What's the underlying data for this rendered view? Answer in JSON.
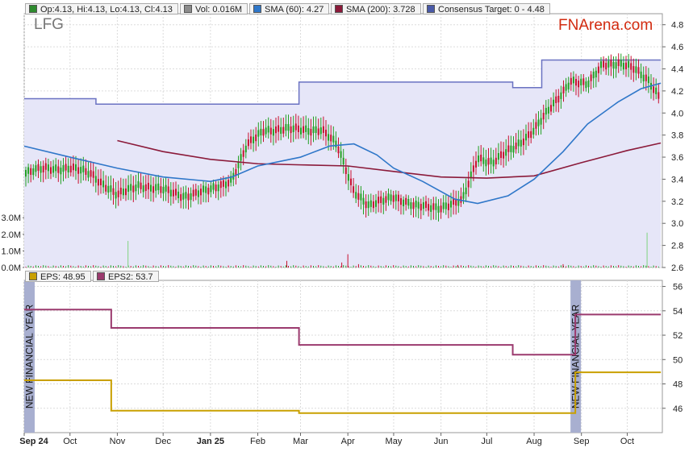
{
  "header": {
    "ticker": "LFG",
    "brand": "FNArena.com",
    "legend": [
      {
        "text": "Op:4.13, Hi:4.13, Lo:4.13, Cl:4.13",
        "color": "#2e8b2e"
      },
      {
        "text": "Vol: 0.016M",
        "color": "#8c8c8c"
      },
      {
        "text": "SMA (60): 4.27",
        "color": "#2f77c9"
      },
      {
        "text": "SMA (200): 3.728",
        "color": "#8b1a3a"
      },
      {
        "text": "Consensus Target: 0 - 4.48",
        "color": "#4a5aa8"
      }
    ]
  },
  "lower_legend": [
    {
      "text": "EPS: 48.95",
      "color": "#c9a000"
    },
    {
      "text": "EPS2: 53.7",
      "color": "#9b3a6e"
    }
  ],
  "annotations": {
    "fy_label": "NEW FINANCIAL YEAR"
  },
  "colors": {
    "up": "#22a022",
    "down": "#c8102e",
    "sma60": "#2f77c9",
    "sma200": "#8b1a3a",
    "target": "#6a72c2",
    "target_fill": "#e6e6f8",
    "eps": "#c9a000",
    "eps2": "#9b3a6e",
    "fy_band": "#a8afd0"
  },
  "chart_data": [
    {
      "type": "candlestick",
      "title": "LFG",
      "y_axis_ticks": [
        2.6,
        2.8,
        3.0,
        3.2,
        3.4,
        3.6,
        3.8,
        4.0,
        4.2,
        4.4,
        4.6,
        4.8
      ],
      "ylim": [
        2.6,
        4.9
      ],
      "x_axis_ticks": [
        "Sep 24",
        "Oct",
        "Nov",
        "Dec",
        "Jan 25",
        "Feb",
        "Mar",
        "Apr",
        "May",
        "Jun",
        "Jul",
        "Aug",
        "Sep",
        "Oct"
      ],
      "price_path": [
        [
          "2024-09-01",
          3.45
        ],
        [
          "2024-09-15",
          3.5
        ],
        [
          "2024-10-01",
          3.5
        ],
        [
          "2024-10-15",
          3.45
        ],
        [
          "2024-11-01",
          3.25
        ],
        [
          "2024-11-15",
          3.35
        ],
        [
          "2024-12-01",
          3.3
        ],
        [
          "2024-12-15",
          3.25
        ],
        [
          "2025-01-01",
          3.3
        ],
        [
          "2025-01-15",
          3.4
        ],
        [
          "2025-01-25",
          3.7
        ],
        [
          "2025-02-05",
          3.85
        ],
        [
          "2025-02-15",
          3.85
        ],
        [
          "2025-03-01",
          3.85
        ],
        [
          "2025-03-15",
          3.85
        ],
        [
          "2025-03-25",
          3.7
        ],
        [
          "2025-04-05",
          3.3
        ],
        [
          "2025-04-15",
          3.15
        ],
        [
          "2025-05-01",
          3.25
        ],
        [
          "2025-05-15",
          3.15
        ],
        [
          "2025-06-01",
          3.15
        ],
        [
          "2025-06-15",
          3.2
        ],
        [
          "2025-06-25",
          3.6
        ],
        [
          "2025-07-05",
          3.55
        ],
        [
          "2025-07-20",
          3.7
        ],
        [
          "2025-08-01",
          3.85
        ],
        [
          "2025-08-15",
          4.1
        ],
        [
          "2025-08-25",
          4.3
        ],
        [
          "2025-09-05",
          4.25
        ],
        [
          "2025-09-15",
          4.45
        ],
        [
          "2025-09-25",
          4.45
        ],
        [
          "2025-10-05",
          4.4
        ],
        [
          "2025-10-15",
          4.3
        ],
        [
          "2025-10-23",
          4.13
        ]
      ],
      "ohlc_last": {
        "open": 4.13,
        "high": 4.13,
        "low": 4.13,
        "close": 4.13
      },
      "sma60": [
        [
          "2024-09-01",
          3.7
        ],
        [
          "2024-10-01",
          3.6
        ],
        [
          "2024-11-01",
          3.5
        ],
        [
          "2024-12-01",
          3.42
        ],
        [
          "2025-01-01",
          3.38
        ],
        [
          "2025-01-15",
          3.42
        ],
        [
          "2025-02-01",
          3.52
        ],
        [
          "2025-03-01",
          3.6
        ],
        [
          "2025-03-20",
          3.7
        ],
        [
          "2025-04-05",
          3.72
        ],
        [
          "2025-04-20",
          3.62
        ],
        [
          "2025-05-01",
          3.5
        ],
        [
          "2025-05-20",
          3.38
        ],
        [
          "2025-06-10",
          3.22
        ],
        [
          "2025-06-25",
          3.18
        ],
        [
          "2025-07-15",
          3.25
        ],
        [
          "2025-08-01",
          3.4
        ],
        [
          "2025-08-20",
          3.65
        ],
        [
          "2025-09-05",
          3.9
        ],
        [
          "2025-09-25",
          4.1
        ],
        [
          "2025-10-10",
          4.22
        ],
        [
          "2025-10-23",
          4.27
        ]
      ],
      "sma200": [
        [
          "2024-11-01",
          3.75
        ],
        [
          "2024-12-01",
          3.65
        ],
        [
          "2025-01-01",
          3.58
        ],
        [
          "2025-02-01",
          3.54
        ],
        [
          "2025-03-01",
          3.53
        ],
        [
          "2025-04-01",
          3.52
        ],
        [
          "2025-05-01",
          3.47
        ],
        [
          "2025-06-01",
          3.42
        ],
        [
          "2025-07-01",
          3.41
        ],
        [
          "2025-08-01",
          3.43
        ],
        [
          "2025-09-01",
          3.55
        ],
        [
          "2025-10-01",
          3.66
        ],
        [
          "2025-10-23",
          3.728
        ]
      ],
      "consensus_target": [
        [
          "2024-09-01",
          4.13
        ],
        [
          "2024-10-18",
          4.13
        ],
        [
          "2024-10-18",
          4.08
        ],
        [
          "2025-02-28",
          4.08
        ],
        [
          "2025-02-28",
          4.28
        ],
        [
          "2025-07-18",
          4.28
        ],
        [
          "2025-07-18",
          4.23
        ],
        [
          "2025-08-06",
          4.23
        ],
        [
          "2025-08-06",
          4.48
        ],
        [
          "2025-10-23",
          4.48
        ]
      ]
    },
    {
      "type": "bar",
      "title": "Volume",
      "y_axis_ticks": [
        "0.0M",
        "1.0M",
        "2.0M",
        "3.0M"
      ],
      "ylim": [
        0,
        3.4
      ],
      "spikes": [
        [
          "2024-11-08",
          1.6
        ],
        [
          "2025-02-20",
          0.4
        ],
        [
          "2025-03-28",
          0.3
        ],
        [
          "2025-04-01",
          0.8
        ],
        [
          "2025-04-08",
          0.2
        ],
        [
          "2025-06-12",
          0.15
        ],
        [
          "2025-08-20",
          0.2
        ],
        [
          "2025-10-14",
          2.1
        ]
      ],
      "baseline_volume": 0.1,
      "last_value": 0.016
    },
    {
      "type": "line",
      "title": "EPS",
      "y_axis_ticks": [
        46,
        48,
        50,
        52,
        54,
        56
      ],
      "ylim": [
        44,
        56.5
      ],
      "x_axis_ticks": [
        "Sep 24",
        "Oct",
        "Nov",
        "Dec",
        "Jan 25",
        "Feb",
        "Mar",
        "Apr",
        "May",
        "Jun",
        "Jul",
        "Aug",
        "Sep",
        "Oct"
      ],
      "series": [
        {
          "name": "EPS",
          "values": [
            [
              "2024-09-01",
              48.3
            ],
            [
              "2024-10-28",
              48.3
            ],
            [
              "2024-10-28",
              45.8
            ],
            [
              "2025-02-28",
              45.8
            ],
            [
              "2025-02-28",
              45.6
            ],
            [
              "2025-08-28",
              45.6
            ],
            [
              "2025-08-28",
              48.95
            ],
            [
              "2025-10-23",
              48.95
            ]
          ]
        },
        {
          "name": "EPS2",
          "values": [
            [
              "2024-09-01",
              54.1
            ],
            [
              "2024-10-28",
              54.1
            ],
            [
              "2024-10-28",
              52.6
            ],
            [
              "2025-02-28",
              52.6
            ],
            [
              "2025-02-28",
              51.2
            ],
            [
              "2025-07-18",
              51.2
            ],
            [
              "2025-07-18",
              50.4
            ],
            [
              "2025-08-28",
              50.4
            ],
            [
              "2025-08-28",
              53.7
            ],
            [
              "2025-10-23",
              53.7
            ]
          ]
        }
      ],
      "new_financial_year_markers": [
        "2024-09-01",
        "2025-08-28"
      ]
    }
  ]
}
